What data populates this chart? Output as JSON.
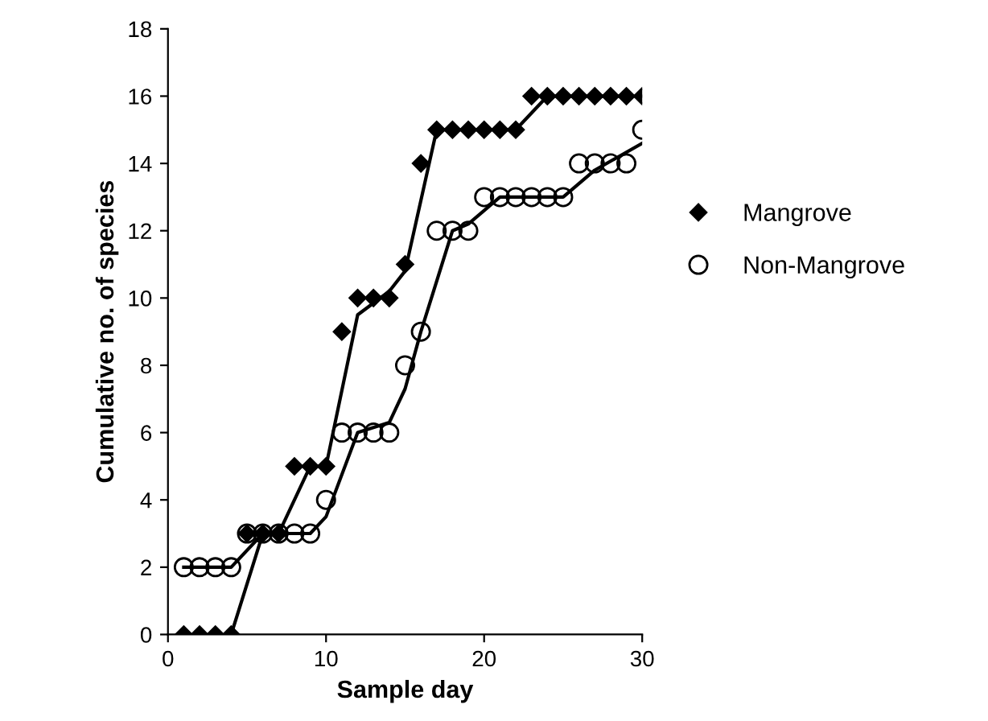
{
  "chart_data": {
    "type": "scatter",
    "xlabel": "Sample day",
    "ylabel": "Cumulative no. of species",
    "xlim": [
      0,
      30
    ],
    "xticks": [
      0,
      10,
      20,
      30
    ],
    "ylim": [
      0,
      18
    ],
    "yticks": [
      0,
      2,
      4,
      6,
      8,
      10,
      12,
      14,
      16,
      18
    ],
    "grid": false,
    "legend": "right",
    "series": [
      {
        "name": "Mangrove",
        "color": "#000000",
        "marker": "diamond",
        "x": [
          1,
          2,
          3,
          4,
          5,
          6,
          7,
          8,
          9,
          10,
          11,
          12,
          13,
          14,
          15,
          16,
          17,
          18,
          19,
          20,
          21,
          22,
          23,
          24,
          25,
          26,
          27,
          28,
          29,
          30
        ],
        "values": [
          0,
          0,
          0,
          0,
          3,
          3,
          3,
          5,
          5,
          5,
          9,
          10,
          10,
          10,
          11,
          14,
          15,
          15,
          15,
          15,
          15,
          15,
          16,
          16,
          16,
          16,
          16,
          16,
          16,
          16
        ]
      },
      {
        "name": "Non-Mangrove",
        "color": "#000000",
        "marker": "circle",
        "x": [
          1,
          2,
          3,
          4,
          5,
          6,
          7,
          8,
          9,
          10,
          11,
          12,
          13,
          14,
          15,
          16,
          17,
          18,
          19,
          20,
          21,
          22,
          23,
          24,
          25,
          26,
          27,
          28,
          29,
          30
        ],
        "values": [
          2,
          2,
          2,
          2,
          3,
          3,
          3,
          3,
          3,
          4,
          6,
          6,
          6,
          6,
          8,
          9,
          12,
          12,
          12,
          13,
          13,
          13,
          13,
          13,
          13,
          14,
          14,
          14,
          14,
          15
        ]
      },
      {
        "type": "line",
        "color": "#000000",
        "x": [
          4,
          6,
          7,
          9,
          10,
          12,
          14,
          15,
          17,
          22,
          24,
          30
        ],
        "values": [
          0,
          3,
          3,
          5,
          5,
          9.5,
          10.2,
          10.8,
          15,
          15,
          16,
          16
        ]
      },
      {
        "type": "line",
        "color": "#000000",
        "x": [
          1,
          4,
          6,
          9,
          10,
          12,
          14,
          15,
          16,
          18,
          19,
          21,
          25,
          27,
          30
        ],
        "values": [
          2,
          2,
          3,
          3,
          3.5,
          6,
          6.3,
          7.3,
          9,
          12,
          12.2,
          13,
          13,
          13.8,
          14.6
        ]
      }
    ]
  }
}
